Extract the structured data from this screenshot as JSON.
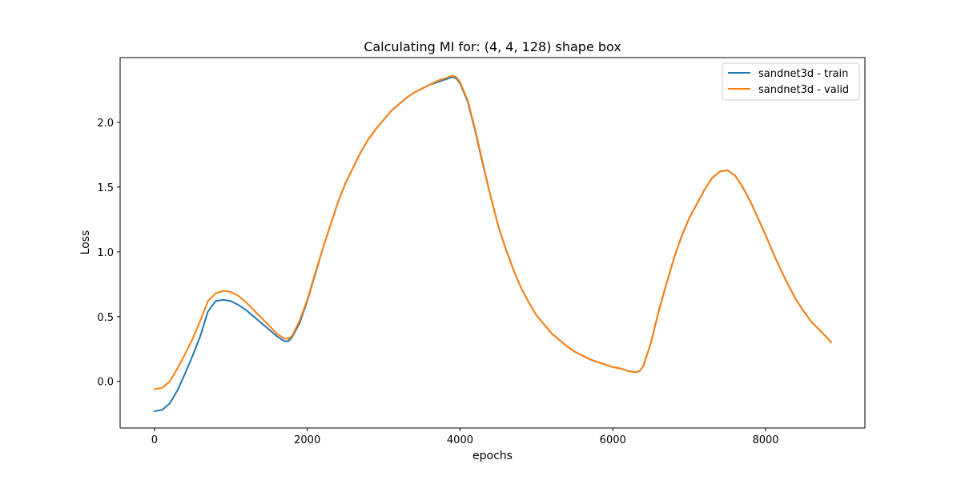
{
  "chart_data": {
    "type": "line",
    "title": "Calculating MI for: (4, 4, 128) shape box",
    "xlabel": "epochs",
    "ylabel": "Loss",
    "xlim": [
      -450,
      9300
    ],
    "ylim": [
      -0.36,
      2.5
    ],
    "xticks": [
      0,
      2000,
      4000,
      6000,
      8000
    ],
    "yticks": [
      0.0,
      0.5,
      1.0,
      1.5,
      2.0
    ],
    "xtick_labels": [
      "0",
      "2000",
      "4000",
      "6000",
      "8000"
    ],
    "ytick_labels": [
      "0.0",
      "0.5",
      "1.0",
      "1.5",
      "2.0"
    ],
    "grid": false,
    "legend_position": "top-right",
    "series": [
      {
        "name": "sandnet3d - train",
        "color": "#1f77b4",
        "points": [
          [
            0,
            -0.23
          ],
          [
            100,
            -0.22
          ],
          [
            200,
            -0.17
          ],
          [
            300,
            -0.07
          ],
          [
            400,
            0.06
          ],
          [
            500,
            0.2
          ],
          [
            600,
            0.35
          ],
          [
            700,
            0.54
          ],
          [
            800,
            0.62
          ],
          [
            900,
            0.63
          ],
          [
            1000,
            0.62
          ],
          [
            1100,
            0.59
          ],
          [
            1200,
            0.55
          ],
          [
            1300,
            0.5
          ],
          [
            1400,
            0.45
          ],
          [
            1500,
            0.4
          ],
          [
            1600,
            0.35
          ],
          [
            1700,
            0.31
          ],
          [
            1750,
            0.31
          ],
          [
            1800,
            0.34
          ],
          [
            1900,
            0.45
          ],
          [
            2000,
            0.62
          ],
          [
            2100,
            0.82
          ],
          [
            2200,
            1.02
          ],
          [
            2300,
            1.2
          ],
          [
            2400,
            1.38
          ],
          [
            2500,
            1.53
          ],
          [
            2600,
            1.65
          ],
          [
            2700,
            1.77
          ],
          [
            2800,
            1.87
          ],
          [
            2900,
            1.95
          ],
          [
            3000,
            2.02
          ],
          [
            3100,
            2.09
          ],
          [
            3200,
            2.14
          ],
          [
            3300,
            2.19
          ],
          [
            3400,
            2.23
          ],
          [
            3500,
            2.26
          ],
          [
            3600,
            2.29
          ],
          [
            3700,
            2.31
          ],
          [
            3800,
            2.33
          ],
          [
            3900,
            2.35
          ],
          [
            3950,
            2.34
          ],
          [
            4000,
            2.3
          ],
          [
            4100,
            2.16
          ],
          [
            4200,
            1.93
          ],
          [
            4300,
            1.67
          ],
          [
            4400,
            1.43
          ],
          [
            4500,
            1.2
          ],
          [
            4600,
            1.02
          ],
          [
            4700,
            0.86
          ],
          [
            4800,
            0.72
          ],
          [
            4900,
            0.61
          ],
          [
            5000,
            0.51
          ],
          [
            5100,
            0.44
          ],
          [
            5200,
            0.37
          ],
          [
            5300,
            0.32
          ],
          [
            5400,
            0.27
          ],
          [
            5500,
            0.23
          ],
          [
            5600,
            0.2
          ],
          [
            5700,
            0.17
          ],
          [
            5800,
            0.15
          ],
          [
            5900,
            0.13
          ],
          [
            6000,
            0.11
          ],
          [
            6100,
            0.1
          ],
          [
            6200,
            0.08
          ],
          [
            6300,
            0.07
          ],
          [
            6350,
            0.08
          ],
          [
            6400,
            0.12
          ],
          [
            6500,
            0.3
          ],
          [
            6600,
            0.54
          ],
          [
            6700,
            0.75
          ],
          [
            6800,
            0.95
          ],
          [
            6900,
            1.12
          ],
          [
            7000,
            1.26
          ],
          [
            7100,
            1.37
          ],
          [
            7200,
            1.48
          ],
          [
            7300,
            1.57
          ],
          [
            7400,
            1.62
          ],
          [
            7500,
            1.63
          ],
          [
            7600,
            1.59
          ],
          [
            7700,
            1.5
          ],
          [
            7800,
            1.39
          ],
          [
            7900,
            1.26
          ],
          [
            8000,
            1.13
          ],
          [
            8100,
            0.99
          ],
          [
            8200,
            0.86
          ],
          [
            8300,
            0.74
          ],
          [
            8400,
            0.63
          ],
          [
            8500,
            0.54
          ],
          [
            8600,
            0.46
          ],
          [
            8700,
            0.4
          ],
          [
            8800,
            0.34
          ],
          [
            8860,
            0.3
          ]
        ]
      },
      {
        "name": "sandnet3d - valid",
        "color": "#ff7f0e",
        "points": [
          [
            0,
            -0.06
          ],
          [
            100,
            -0.05
          ],
          [
            200,
            0.0
          ],
          [
            300,
            0.1
          ],
          [
            400,
            0.21
          ],
          [
            500,
            0.33
          ],
          [
            600,
            0.47
          ],
          [
            700,
            0.62
          ],
          [
            800,
            0.68
          ],
          [
            900,
            0.7
          ],
          [
            1000,
            0.69
          ],
          [
            1100,
            0.66
          ],
          [
            1200,
            0.61
          ],
          [
            1300,
            0.55
          ],
          [
            1400,
            0.49
          ],
          [
            1500,
            0.43
          ],
          [
            1600,
            0.37
          ],
          [
            1700,
            0.33
          ],
          [
            1750,
            0.33
          ],
          [
            1800,
            0.35
          ],
          [
            1900,
            0.47
          ],
          [
            2000,
            0.63
          ],
          [
            2100,
            0.83
          ],
          [
            2200,
            1.02
          ],
          [
            2300,
            1.2
          ],
          [
            2400,
            1.38
          ],
          [
            2500,
            1.53
          ],
          [
            2600,
            1.65
          ],
          [
            2700,
            1.77
          ],
          [
            2800,
            1.87
          ],
          [
            2900,
            1.95
          ],
          [
            3000,
            2.02
          ],
          [
            3100,
            2.09
          ],
          [
            3200,
            2.14
          ],
          [
            3300,
            2.19
          ],
          [
            3400,
            2.23
          ],
          [
            3500,
            2.26
          ],
          [
            3600,
            2.29
          ],
          [
            3700,
            2.32
          ],
          [
            3800,
            2.34
          ],
          [
            3900,
            2.36
          ],
          [
            3950,
            2.35
          ],
          [
            4000,
            2.31
          ],
          [
            4100,
            2.17
          ],
          [
            4200,
            1.94
          ],
          [
            4300,
            1.68
          ],
          [
            4400,
            1.43
          ],
          [
            4500,
            1.2
          ],
          [
            4600,
            1.02
          ],
          [
            4700,
            0.86
          ],
          [
            4800,
            0.72
          ],
          [
            4900,
            0.61
          ],
          [
            5000,
            0.51
          ],
          [
            5100,
            0.44
          ],
          [
            5200,
            0.37
          ],
          [
            5300,
            0.32
          ],
          [
            5400,
            0.27
          ],
          [
            5500,
            0.23
          ],
          [
            5600,
            0.2
          ],
          [
            5700,
            0.17
          ],
          [
            5800,
            0.15
          ],
          [
            5900,
            0.13
          ],
          [
            6000,
            0.11
          ],
          [
            6100,
            0.1
          ],
          [
            6200,
            0.08
          ],
          [
            6300,
            0.07
          ],
          [
            6350,
            0.08
          ],
          [
            6400,
            0.12
          ],
          [
            6500,
            0.3
          ],
          [
            6600,
            0.54
          ],
          [
            6700,
            0.75
          ],
          [
            6800,
            0.95
          ],
          [
            6900,
            1.12
          ],
          [
            7000,
            1.26
          ],
          [
            7100,
            1.37
          ],
          [
            7200,
            1.48
          ],
          [
            7300,
            1.57
          ],
          [
            7400,
            1.62
          ],
          [
            7500,
            1.63
          ],
          [
            7600,
            1.59
          ],
          [
            7700,
            1.5
          ],
          [
            7800,
            1.39
          ],
          [
            7900,
            1.26
          ],
          [
            8000,
            1.13
          ],
          [
            8100,
            0.99
          ],
          [
            8200,
            0.86
          ],
          [
            8300,
            0.74
          ],
          [
            8400,
            0.63
          ],
          [
            8500,
            0.54
          ],
          [
            8600,
            0.46
          ],
          [
            8700,
            0.4
          ],
          [
            8800,
            0.34
          ],
          [
            8860,
            0.3
          ]
        ]
      }
    ]
  }
}
